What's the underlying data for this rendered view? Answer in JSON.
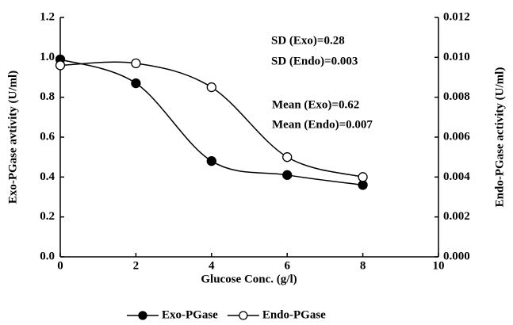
{
  "chart_data": {
    "type": "line",
    "x_label": "Glucose Conc. (g/l)",
    "y_label": "Exo-PGase avtivity (U/ml)",
    "y2_label": "Endo-PGase activity (U/ml)",
    "x": [
      0,
      2,
      4,
      6,
      8
    ],
    "series": [
      {
        "name": "Exo-PGase",
        "color": "#000000",
        "marker": "filled-circle",
        "values": [
          0.99,
          0.87,
          0.48,
          0.41,
          0.36
        ]
      },
      {
        "name": "Endo-PGase",
        "color": "#000000",
        "marker": "open-circle",
        "axis": "y2",
        "values": [
          0.0096,
          0.0097,
          0.0085,
          0.005,
          0.004
        ]
      }
    ],
    "xlim": [
      0,
      10
    ],
    "xticks": [
      0,
      2,
      4,
      6,
      8,
      10
    ],
    "ylim": [
      0,
      1.2
    ],
    "yticks": [
      {
        "value": 0,
        "label": "0.0"
      },
      0.2,
      0.4,
      0.6,
      0.8,
      {
        "value": 1,
        "label": "1.0"
      },
      1.2
    ],
    "y2lim": [
      0,
      0.012
    ],
    "y2ticks": [
      {
        "value": 0,
        "label": "0.000"
      },
      {
        "value": 0.002,
        "label": "0.002"
      },
      {
        "value": 0.004,
        "label": "0.004"
      },
      {
        "value": 0.006,
        "label": "0.006"
      },
      {
        "value": 0.008,
        "label": "0.008"
      },
      {
        "value": 0.01,
        "label": "0.010"
      },
      {
        "value": 0.012,
        "label": "0.012"
      }
    ],
    "annotations": [
      "SD (Exo)=0.28",
      "SD (Endo)=0.003",
      "Mean (Exo)=0.62",
      "Mean (Endo)=0.007"
    ],
    "legend": "bottom"
  }
}
